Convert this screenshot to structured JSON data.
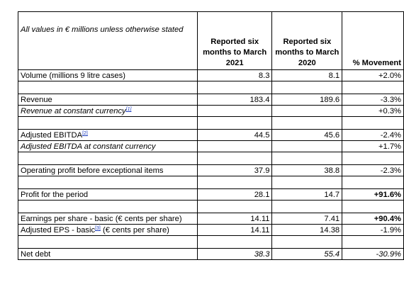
{
  "header": {
    "note": "All values in € millions unless otherwise stated",
    "col2021": "Reported six months to March 2021",
    "col2020": "Reported six months to March 2020",
    "col_movement": "% Movement"
  },
  "rows": [
    {
      "label": "Volume (millions 9 litre cases)",
      "v2021": "8.3",
      "v2020": "8.1",
      "movement": "+2.0%"
    },
    {
      "label": "Revenue",
      "v2021": "183.4",
      "v2020": "189.6",
      "movement": "-3.3%"
    },
    {
      "label": "Revenue at constant currency",
      "footnote": "[1]",
      "v2021": "",
      "v2020": "",
      "movement": "+0.3%"
    },
    {
      "label": "Adjusted EBITDA",
      "footnote": "[2]",
      "v2021": "44.5",
      "v2020": "45.6",
      "movement": "-2.4%"
    },
    {
      "label": "Adjusted EBITDA at constant currency",
      "v2021": "",
      "v2020": "",
      "movement": "+1.7%"
    },
    {
      "label": "Operating profit before exceptional items",
      "v2021": "37.9",
      "v2020": "38.8",
      "movement": "-2.3%"
    },
    {
      "label": "Profit for the period",
      "v2021": "28.1",
      "v2020": "14.7",
      "movement": "+91.6%"
    },
    {
      "label": "Earnings per share - basic (€ cents per share)",
      "v2021": "14.11",
      "v2020": "7.41",
      "movement": "+90.4%"
    },
    {
      "label": "Adjusted EPS - basic",
      "footnote": "[3]",
      "label_suffix": " (€ cents per share)",
      "v2021": "14.11",
      "v2020": "14.38",
      "movement": "-1.9%"
    },
    {
      "label": "Net debt",
      "v2021": "38.3",
      "v2020": "55.4",
      "movement": "-30.9%"
    }
  ]
}
